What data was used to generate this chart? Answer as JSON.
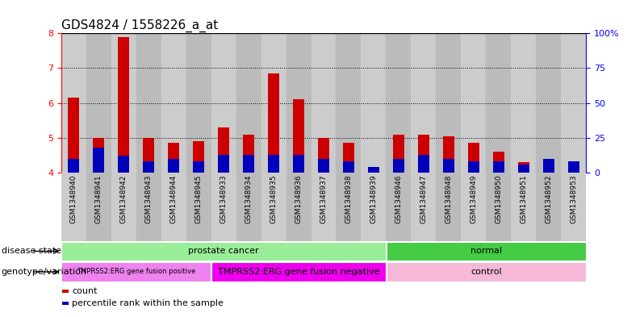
{
  "title": "GDS4824 / 1558226_a_at",
  "samples": [
    "GSM1348940",
    "GSM1348941",
    "GSM1348942",
    "GSM1348943",
    "GSM1348944",
    "GSM1348945",
    "GSM1348933",
    "GSM1348934",
    "GSM1348935",
    "GSM1348936",
    "GSM1348937",
    "GSM1348938",
    "GSM1348939",
    "GSM1348946",
    "GSM1348947",
    "GSM1348948",
    "GSM1348949",
    "GSM1348950",
    "GSM1348951",
    "GSM1348952",
    "GSM1348953"
  ],
  "count_values": [
    6.15,
    5.0,
    7.9,
    5.0,
    4.85,
    4.9,
    5.3,
    5.1,
    6.85,
    6.1,
    5.0,
    4.85,
    4.15,
    5.1,
    5.1,
    5.05,
    4.85,
    4.6,
    4.3,
    4.35,
    4.3
  ],
  "percentile_values_pct": [
    10,
    18,
    12,
    8,
    10,
    8,
    13,
    13,
    13,
    13,
    10,
    8,
    4,
    10,
    13,
    10,
    8,
    8,
    6,
    10,
    8
  ],
  "ylim": [
    4.0,
    8.0
  ],
  "yticks": [
    4,
    5,
    6,
    7,
    8
  ],
  "right_yticks_labels": [
    "100%",
    "75",
    "50",
    "25",
    "0"
  ],
  "right_yticks_vals": [
    100,
    75,
    50,
    25,
    0
  ],
  "bar_color": "#CC0000",
  "percentile_color": "#0000BB",
  "bg_colors": [
    "#CCCCCC",
    "#BBBBBB"
  ],
  "title_fontsize": 11,
  "tick_fontsize": 8,
  "sample_fontsize": 6.5,
  "label_fontsize": 8,
  "annot_fontsize": 7,
  "disease_state_label": "disease state",
  "genotype_label": "genotype/variation",
  "legend_count_label": "count",
  "legend_percentile_label": "percentile rank within the sample",
  "disease_groups": [
    {
      "label": "prostate cancer",
      "start": 0,
      "end": 13,
      "color": "#99EE99"
    },
    {
      "label": "normal",
      "start": 13,
      "end": 21,
      "color": "#44CC44"
    }
  ],
  "genotype_groups": [
    {
      "label": "TMPRSS2:ERG gene fusion positive",
      "start": 0,
      "end": 6,
      "color": "#EE82EE",
      "fontsize": 6
    },
    {
      "label": "TMPRSS2:ERG gene fusion negative",
      "start": 6,
      "end": 13,
      "color": "#EE00EE",
      "fontsize": 8
    },
    {
      "label": "control",
      "start": 13,
      "end": 21,
      "color": "#F5B8D8",
      "fontsize": 8
    }
  ]
}
